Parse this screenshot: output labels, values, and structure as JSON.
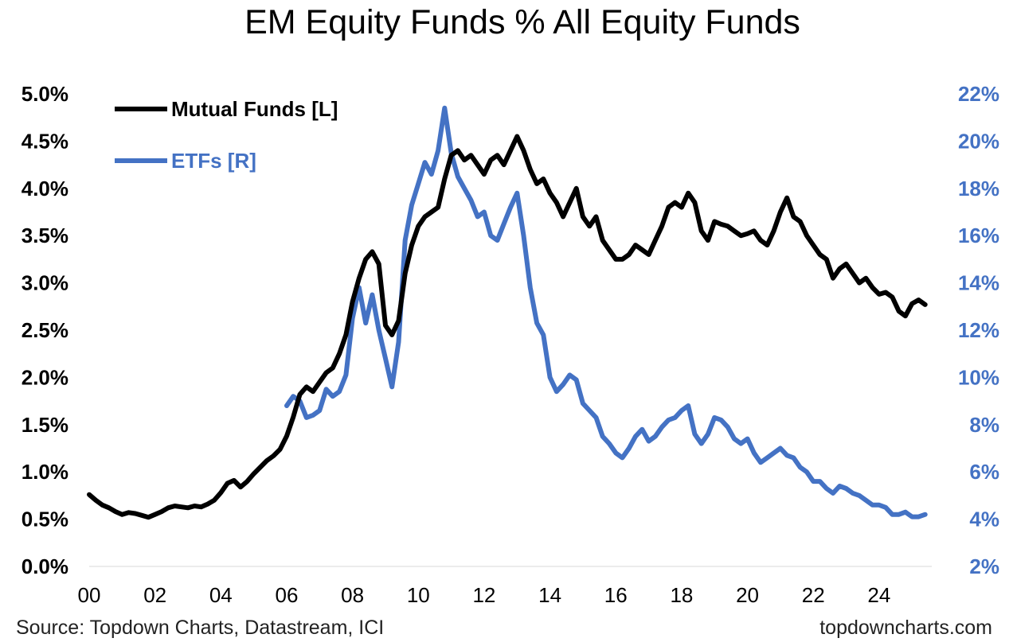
{
  "chart_data": {
    "type": "line",
    "title": "EM Equity Funds % All Equity Funds",
    "colors": {
      "mutual": "#000000",
      "etf": "#4472c4"
    },
    "x_axis": {
      "range": [
        2000,
        2025.6
      ],
      "tick_values": [
        2000,
        2002,
        2004,
        2006,
        2008,
        2010,
        2012,
        2014,
        2016,
        2018,
        2020,
        2022,
        2024
      ],
      "tick_labels": [
        "00",
        "02",
        "04",
        "06",
        "08",
        "10",
        "12",
        "14",
        "16",
        "18",
        "20",
        "22",
        "24"
      ]
    },
    "y_left": {
      "range": [
        0,
        5
      ],
      "tick_values": [
        0,
        0.5,
        1,
        1.5,
        2,
        2.5,
        3,
        3.5,
        4,
        4.5,
        5
      ],
      "tick_labels": [
        "0.0%",
        "0.5%",
        "1.0%",
        "1.5%",
        "2.0%",
        "2.5%",
        "3.0%",
        "3.5%",
        "4.0%",
        "4.5%",
        "5.0%"
      ]
    },
    "y_right": {
      "range": [
        2,
        22
      ],
      "tick_values": [
        2,
        4,
        6,
        8,
        10,
        12,
        14,
        16,
        18,
        20,
        22
      ],
      "tick_labels": [
        "2%",
        "4%",
        "6%",
        "8%",
        "10%",
        "12%",
        "14%",
        "16%",
        "18%",
        "20%",
        "22%"
      ]
    },
    "legend": {
      "placement": "top-left"
    },
    "series": [
      {
        "name": "Mutual Funds [L]",
        "axis": "left",
        "x": [
          2000.0,
          2000.2,
          2000.4,
          2000.6,
          2000.8,
          2001.0,
          2001.2,
          2001.4,
          2001.6,
          2001.8,
          2002.0,
          2002.2,
          2002.4,
          2002.6,
          2002.8,
          2003.0,
          2003.2,
          2003.4,
          2003.6,
          2003.8,
          2004.0,
          2004.2,
          2004.4,
          2004.6,
          2004.8,
          2005.0,
          2005.2,
          2005.4,
          2005.6,
          2005.8,
          2006.0,
          2006.2,
          2006.4,
          2006.6,
          2006.8,
          2007.0,
          2007.2,
          2007.4,
          2007.6,
          2007.8,
          2008.0,
          2008.2,
          2008.4,
          2008.6,
          2008.8,
          2009.0,
          2009.2,
          2009.4,
          2009.6,
          2009.8,
          2010.0,
          2010.2,
          2010.4,
          2010.6,
          2010.8,
          2011.0,
          2011.2,
          2011.4,
          2011.6,
          2011.8,
          2012.0,
          2012.2,
          2012.4,
          2012.6,
          2012.8,
          2013.0,
          2013.2,
          2013.4,
          2013.6,
          2013.8,
          2014.0,
          2014.2,
          2014.4,
          2014.6,
          2014.8,
          2015.0,
          2015.2,
          2015.4,
          2015.6,
          2015.8,
          2016.0,
          2016.2,
          2016.4,
          2016.6,
          2016.8,
          2017.0,
          2017.2,
          2017.4,
          2017.6,
          2017.8,
          2018.0,
          2018.2,
          2018.4,
          2018.6,
          2018.8,
          2019.0,
          2019.2,
          2019.4,
          2019.6,
          2019.8,
          2020.0,
          2020.2,
          2020.4,
          2020.6,
          2020.8,
          2021.0,
          2021.2,
          2021.4,
          2021.6,
          2021.8,
          2022.0,
          2022.2,
          2022.4,
          2022.6,
          2022.8,
          2023.0,
          2023.2,
          2023.4,
          2023.6,
          2023.8,
          2024.0,
          2024.2,
          2024.4,
          2024.6,
          2024.8,
          2025.0,
          2025.2,
          2025.4
        ],
        "values": [
          0.76,
          0.7,
          0.65,
          0.62,
          0.58,
          0.55,
          0.57,
          0.56,
          0.54,
          0.52,
          0.55,
          0.58,
          0.62,
          0.64,
          0.63,
          0.62,
          0.64,
          0.63,
          0.66,
          0.7,
          0.78,
          0.88,
          0.91,
          0.84,
          0.9,
          0.98,
          1.05,
          1.12,
          1.17,
          1.24,
          1.38,
          1.58,
          1.82,
          1.9,
          1.85,
          1.95,
          2.05,
          2.1,
          2.25,
          2.45,
          2.8,
          3.05,
          3.25,
          3.33,
          3.2,
          2.55,
          2.45,
          2.6,
          3.1,
          3.4,
          3.6,
          3.7,
          3.75,
          3.8,
          4.1,
          4.35,
          4.4,
          4.3,
          4.35,
          4.25,
          4.15,
          4.3,
          4.35,
          4.25,
          4.4,
          4.55,
          4.4,
          4.2,
          4.05,
          4.1,
          3.95,
          3.85,
          3.7,
          3.85,
          4.0,
          3.7,
          3.6,
          3.7,
          3.45,
          3.35,
          3.25,
          3.25,
          3.3,
          3.4,
          3.35,
          3.3,
          3.45,
          3.6,
          3.8,
          3.85,
          3.8,
          3.95,
          3.85,
          3.55,
          3.45,
          3.65,
          3.62,
          3.6,
          3.55,
          3.5,
          3.52,
          3.55,
          3.45,
          3.4,
          3.55,
          3.75,
          3.9,
          3.7,
          3.65,
          3.5,
          3.4,
          3.3,
          3.25,
          3.05,
          3.15,
          3.2,
          3.1,
          3.0,
          3.05,
          2.95,
          2.88,
          2.9,
          2.85,
          2.7,
          2.65,
          2.78,
          2.82,
          2.77
        ]
      },
      {
        "name": "ETFs [R]",
        "axis": "right",
        "x": [
          2006.0,
          2006.2,
          2006.4,
          2006.6,
          2006.8,
          2007.0,
          2007.2,
          2007.4,
          2007.6,
          2007.8,
          2008.0,
          2008.2,
          2008.4,
          2008.6,
          2008.8,
          2009.0,
          2009.2,
          2009.4,
          2009.6,
          2009.8,
          2010.0,
          2010.2,
          2010.4,
          2010.6,
          2010.8,
          2011.0,
          2011.2,
          2011.4,
          2011.6,
          2011.8,
          2012.0,
          2012.2,
          2012.4,
          2012.6,
          2012.8,
          2013.0,
          2013.2,
          2013.4,
          2013.6,
          2013.8,
          2014.0,
          2014.2,
          2014.4,
          2014.6,
          2014.8,
          2015.0,
          2015.2,
          2015.4,
          2015.6,
          2015.8,
          2016.0,
          2016.2,
          2016.4,
          2016.6,
          2016.8,
          2017.0,
          2017.2,
          2017.4,
          2017.6,
          2017.8,
          2018.0,
          2018.2,
          2018.4,
          2018.6,
          2018.8,
          2019.0,
          2019.2,
          2019.4,
          2019.6,
          2019.8,
          2020.0,
          2020.2,
          2020.4,
          2020.6,
          2020.8,
          2021.0,
          2021.2,
          2021.4,
          2021.6,
          2021.8,
          2022.0,
          2022.2,
          2022.4,
          2022.6,
          2022.8,
          2023.0,
          2023.2,
          2023.4,
          2023.6,
          2023.8,
          2024.0,
          2024.2,
          2024.4,
          2024.6,
          2024.8,
          2025.0,
          2025.2,
          2025.4
        ],
        "values": [
          8.8,
          9.2,
          9.0,
          8.3,
          8.4,
          8.6,
          9.5,
          9.2,
          9.4,
          10.1,
          12.5,
          13.8,
          12.3,
          13.5,
          12.0,
          10.8,
          9.6,
          11.5,
          15.8,
          17.3,
          18.2,
          19.1,
          18.6,
          19.6,
          21.4,
          19.5,
          18.5,
          18.0,
          17.5,
          16.8,
          17.0,
          16.0,
          15.8,
          16.5,
          17.2,
          17.8,
          16.0,
          13.8,
          12.3,
          11.8,
          10.0,
          9.4,
          9.7,
          10.1,
          9.9,
          8.9,
          8.6,
          8.3,
          7.5,
          7.2,
          6.8,
          6.6,
          7.0,
          7.5,
          7.8,
          7.3,
          7.5,
          7.9,
          8.2,
          8.3,
          8.6,
          8.8,
          7.6,
          7.2,
          7.6,
          8.3,
          8.2,
          7.9,
          7.4,
          7.2,
          7.4,
          6.8,
          6.4,
          6.6,
          6.8,
          7.0,
          6.7,
          6.6,
          6.2,
          6.0,
          5.6,
          5.6,
          5.3,
          5.1,
          5.4,
          5.3,
          5.1,
          5.0,
          4.8,
          4.6,
          4.6,
          4.5,
          4.2,
          4.2,
          4.3,
          4.1,
          4.1,
          4.2
        ]
      }
    ]
  },
  "footer": {
    "source": "Source: Topdown Charts, Datastream, ICI",
    "brand": "topdowncharts.com"
  }
}
